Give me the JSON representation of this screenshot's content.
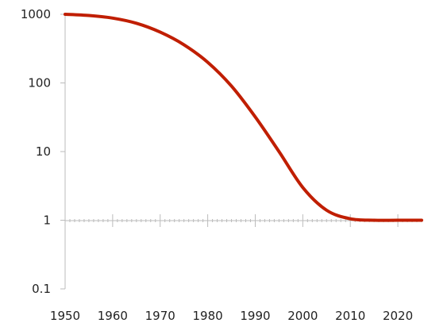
{
  "chart_data": {
    "type": "line",
    "title": "",
    "xlabel": "",
    "ylabel": "",
    "y_scale": "log",
    "xlim": [
      1950,
      2025
    ],
    "ylim": [
      0.1,
      1000
    ],
    "x_ticks": [
      1950,
      1960,
      1970,
      1980,
      1990,
      2000,
      2010,
      2020
    ],
    "y_ticks": [
      {
        "value": 1000,
        "label": "1000"
      },
      {
        "value": 100,
        "label": "100"
      },
      {
        "value": 10,
        "label": "10"
      },
      {
        "value": 1,
        "label": "1"
      },
      {
        "value": 0.1,
        "label": "0.1"
      }
    ],
    "grid": false,
    "series": [
      {
        "color": "#c01e00",
        "x": [
          1950,
          1955,
          1960,
          1965,
          1970,
          1975,
          1980,
          1985,
          1990,
          1995,
          2000,
          2005,
          2010,
          2015,
          2020,
          2025
        ],
        "y": [
          1000,
          960,
          880,
          740,
          550,
          360,
          200,
          90,
          32,
          10,
          3,
          1.4,
          1.05,
          1.0,
          1.0,
          1.0
        ]
      }
    ]
  }
}
